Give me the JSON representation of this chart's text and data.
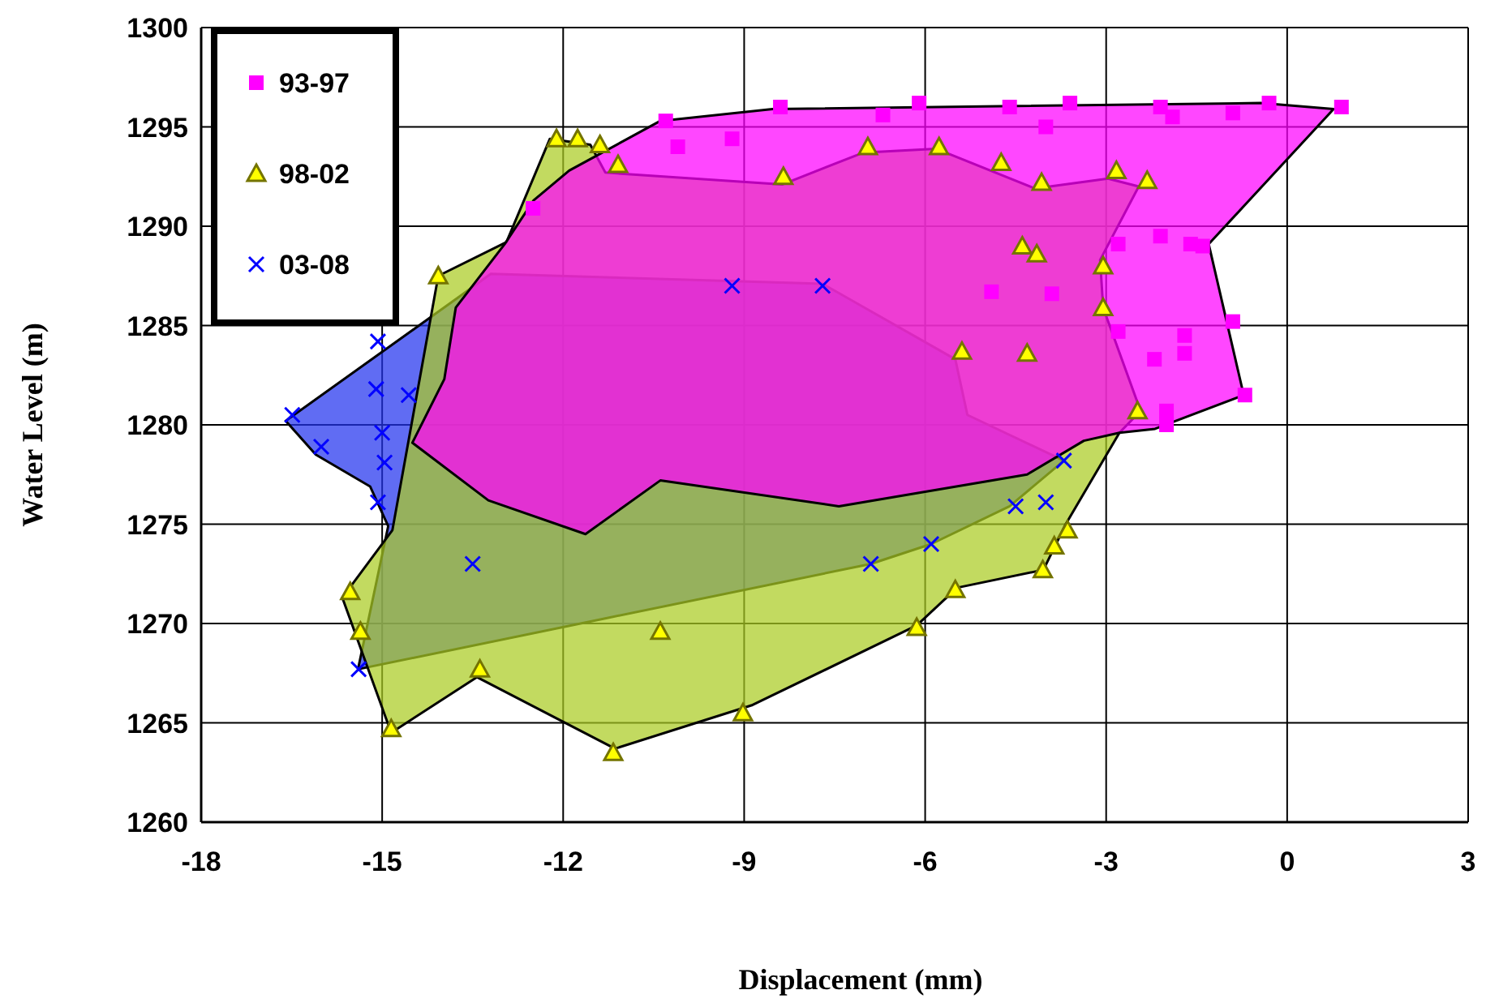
{
  "chart_data": {
    "type": "scatter",
    "xlabel": "Displacement  (mm)",
    "ylabel": "Water Level (m)",
    "xlim": [
      -18,
      3
    ],
    "xticks": [
      -18,
      -15,
      -12,
      -9,
      -6,
      -3,
      0,
      3
    ],
    "ylim": [
      1260,
      1300
    ],
    "yticks": [
      1260,
      1265,
      1270,
      1275,
      1280,
      1285,
      1290,
      1295,
      1300
    ],
    "grid": true,
    "legend": "top left",
    "series": [
      {
        "type": "area",
        "color": "#2233ee",
        "x": [
          -16.6,
          -13.7,
          -13.2,
          -7.7,
          -5.5,
          -5.3,
          -3.7,
          -4.6,
          -5.9,
          -6.9,
          -15.4,
          -14.9,
          -15.2,
          -16.1
        ],
        "values": [
          1280.2,
          1286.5,
          1287.6,
          1287.1,
          1283.3,
          1280.5,
          1278.2,
          1275.9,
          1274.0,
          1273.0,
          1267.7,
          1274.9,
          1276.9,
          1278.5
        ]
      },
      {
        "type": "area",
        "color": "#aacc22",
        "x": [
          -12.22,
          -11.55,
          -11.3,
          -8.37,
          -7.03,
          -5.82,
          -4.18,
          -2.97,
          -2.46,
          -3.1,
          -3.05,
          -2.43,
          -2.78,
          -3.67,
          -4.04,
          -5.47,
          -6.14,
          -8.86,
          -11.14,
          -13.43,
          -14.85,
          -15.66,
          -14.83,
          -14.07,
          -12.94
        ],
        "values": [
          1294.4,
          1294.1,
          1292.7,
          1292.1,
          1293.7,
          1293.9,
          1291.9,
          1292.4,
          1292.0,
          1288.3,
          1285.9,
          1280.7,
          1279.6,
          1275.0,
          1272.7,
          1271.8,
          1269.9,
          1265.9,
          1263.7,
          1267.3,
          1264.5,
          1271.3,
          1274.7,
          1287.5,
          1289.2
        ]
      },
      {
        "type": "area",
        "color": "#ff00ff",
        "x": [
          -10.39,
          -8.53,
          -0.44,
          0.77,
          -1.3,
          -0.72,
          -2.19,
          -2.78,
          -3.37,
          -4.31,
          -7.43,
          -10.39,
          -11.63,
          -13.24,
          -14.5,
          -13.97,
          -13.78,
          -12.97,
          -12.49,
          -11.9
        ],
        "values": [
          1295.3,
          1295.9,
          1296.2,
          1295.9,
          1289.1,
          1281.5,
          1279.8,
          1279.6,
          1279.2,
          1277.5,
          1275.9,
          1277.2,
          1274.5,
          1276.2,
          1279.1,
          1282.3,
          1285.9,
          1289.1,
          1291.3,
          1292.8
        ]
      },
      {
        "name": "93-97",
        "marker": "square",
        "color": "#ff00ff",
        "x": [
          -10.3,
          -10.1,
          -9.2,
          -8.4,
          -6.7,
          -6.1,
          -4.6,
          -3.6,
          -4.0,
          -2.1,
          -1.9,
          -0.9,
          -0.3,
          0.9,
          -2.1,
          -2.8,
          -1.6,
          -1.4,
          -0.9,
          -1.7,
          -1.7,
          -2.2,
          -2.8,
          -0.7,
          -2.0,
          -2.0,
          -12.5,
          -3.9,
          -4.9
        ],
        "values": [
          1295.3,
          1294.0,
          1294.4,
          1296.0,
          1295.6,
          1296.2,
          1296.0,
          1296.2,
          1295.0,
          1296.0,
          1295.5,
          1295.7,
          1296.2,
          1296.0,
          1289.5,
          1289.1,
          1289.1,
          1289.0,
          1285.2,
          1284.5,
          1283.6,
          1283.3,
          1284.7,
          1281.5,
          1280.7,
          1280.0,
          1290.9,
          1286.6,
          1286.7
        ]
      },
      {
        "name": "98-02",
        "marker": "triangle",
        "color": "#ffff00",
        "x": [
          -12.11,
          -11.76,
          -11.39,
          -11.09,
          -8.35,
          -14.07,
          -6.95,
          -5.77,
          -4.74,
          -4.07,
          -2.83,
          -2.32,
          -4.39,
          -4.15,
          -3.05,
          -3.05,
          -5.39,
          -4.31,
          -2.48,
          -15.53,
          -15.36,
          -14.85,
          -13.38,
          -10.39,
          -11.17,
          -9.02,
          -6.14,
          -5.5,
          -4.05,
          -3.86,
          -3.64
        ],
        "values": [
          1294.4,
          1294.4,
          1294.1,
          1293.1,
          1292.5,
          1287.5,
          1294.0,
          1294.0,
          1293.2,
          1292.2,
          1292.8,
          1292.3,
          1289.0,
          1288.6,
          1288.0,
          1285.9,
          1283.7,
          1283.6,
          1280.7,
          1271.6,
          1269.6,
          1264.7,
          1267.7,
          1269.6,
          1263.5,
          1265.5,
          1269.8,
          1271.7,
          1272.7,
          1273.9,
          1274.7
        ]
      },
      {
        "name": "03-08",
        "marker": "cross",
        "color": "#0000ff",
        "x": [
          -16.49,
          -16.01,
          -15.07,
          -15.1,
          -14.56,
          -15.0,
          -14.96,
          -15.07,
          -15.39,
          -13.5,
          -7.7,
          -9.2,
          -4.5,
          -4.0,
          -3.7,
          -5.9,
          -6.9
        ],
        "values": [
          1280.5,
          1278.9,
          1284.2,
          1281.8,
          1281.5,
          1279.6,
          1278.1,
          1276.1,
          1267.7,
          1273.0,
          1287.0,
          1287.0,
          1275.9,
          1276.1,
          1278.2,
          1274.0,
          1273.0
        ]
      }
    ]
  }
}
